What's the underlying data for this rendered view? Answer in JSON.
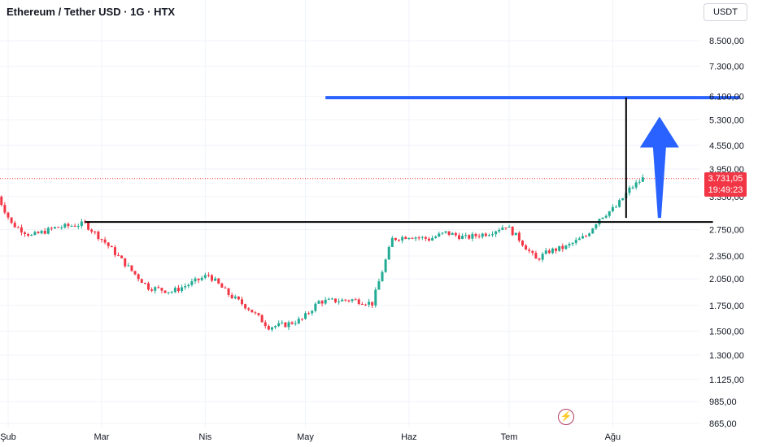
{
  "header": {
    "title": "Ethereum / Tether USD · 1G · HTX",
    "currency_button": "USDT"
  },
  "last_price": {
    "price": "3.731,05",
    "countdown": "19:49:23"
  },
  "colors": {
    "up": "#22ab94",
    "down": "#f23645",
    "target_line": "#2962ff",
    "trend_line": "#000000",
    "price_line": "#f23645",
    "grid": "#f0f3fa"
  },
  "icons": [
    "lightning-logo-icon",
    "up-arrow-icon"
  ],
  "chart_data": {
    "type": "candlestick",
    "title": "Ethereum / Tether USD · 1G · HTX",
    "y_scale": "log",
    "ylim": [
      850,
      10000
    ],
    "y_ticks": [
      {
        "value": 8500,
        "label": "8.500,00"
      },
      {
        "value": 7300,
        "label": "7.300,00"
      },
      {
        "value": 6100,
        "label": "6.100,00"
      },
      {
        "value": 5300,
        "label": "5.300,00"
      },
      {
        "value": 4550,
        "label": "4.550,00"
      },
      {
        "value": 3950,
        "label": "3.950,00"
      },
      {
        "value": 3350,
        "label": "3.350,00"
      },
      {
        "value": 2750,
        "label": "2.750,00"
      },
      {
        "value": 2350,
        "label": "2.350,00"
      },
      {
        "value": 2050,
        "label": "2.050,00"
      },
      {
        "value": 1750,
        "label": "1.750,00"
      },
      {
        "value": 1500,
        "label": "1.500,00"
      },
      {
        "value": 1300,
        "label": "1.300,00"
      },
      {
        "value": 1125,
        "label": "1.125,00"
      },
      {
        "value": 985,
        "label": "985,00"
      },
      {
        "value": 865,
        "label": "865,00"
      }
    ],
    "x_ticks": [
      {
        "date": "2023-02-01",
        "label": "Şub"
      },
      {
        "date": "2023-03-01",
        "label": "Mar"
      },
      {
        "date": "2023-04-01",
        "label": "Nis"
      },
      {
        "date": "2023-05-01",
        "label": "May"
      },
      {
        "date": "2023-06-01",
        "label": "Haz"
      },
      {
        "date": "2023-07-01",
        "label": "Tem"
      },
      {
        "date": "2023-08-01",
        "label": "Ağu"
      }
    ],
    "xlim": [
      "2023-02-01",
      "2023-08-31"
    ],
    "series_path": [
      [
        "2023-01-29",
        3350
      ],
      [
        "2023-02-02",
        2850
      ],
      [
        "2023-02-08",
        2650
      ],
      [
        "2023-02-15",
        2780
      ],
      [
        "2023-02-24",
        2850
      ],
      [
        "2023-03-02",
        2550
      ],
      [
        "2023-03-10",
        2150
      ],
      [
        "2023-03-15",
        1950
      ],
      [
        "2023-03-22",
        1900
      ],
      [
        "2023-03-28",
        2000
      ],
      [
        "2023-04-02",
        2100
      ],
      [
        "2023-04-08",
        1870
      ],
      [
        "2023-04-14",
        1720
      ],
      [
        "2023-04-20",
        1540
      ],
      [
        "2023-04-25",
        1560
      ],
      [
        "2023-04-30",
        1610
      ],
      [
        "2023-05-05",
        1790
      ],
      [
        "2023-05-15",
        1810
      ],
      [
        "2023-05-21",
        1770
      ],
      [
        "2023-05-24",
        2150
      ],
      [
        "2023-05-27",
        2600
      ],
      [
        "2023-06-01",
        2650
      ],
      [
        "2023-06-07",
        2600
      ],
      [
        "2023-06-12",
        2700
      ],
      [
        "2023-06-18",
        2620
      ],
      [
        "2023-06-25",
        2700
      ],
      [
        "2023-06-30",
        2820
      ],
      [
        "2023-07-04",
        2600
      ],
      [
        "2023-07-09",
        2300
      ],
      [
        "2023-07-13",
        2420
      ],
      [
        "2023-07-18",
        2480
      ],
      [
        "2023-07-24",
        2650
      ],
      [
        "2023-07-28",
        2950
      ],
      [
        "2023-08-02",
        3150
      ],
      [
        "2023-08-06",
        3500
      ],
      [
        "2023-08-10",
        3731
      ]
    ],
    "last_price": 3731.05,
    "annotations": [
      {
        "type": "horizontal_segment",
        "label": "resistance",
        "y": 2880,
        "from": "2023-02-24",
        "to": "2023-08-31",
        "color": "#000000"
      },
      {
        "type": "horizontal_segment",
        "label": "target",
        "y": 6050,
        "from": "2023-05-07",
        "to": "2023-09-08",
        "color": "#2962ff"
      },
      {
        "type": "vertical_segment",
        "label": "measured-move",
        "x": "2023-08-05",
        "from": 2950,
        "to": 6050,
        "color": "#000000"
      },
      {
        "type": "arrow_up",
        "x": "2023-08-15",
        "from": 2950,
        "to": 5400,
        "color": "#2962ff"
      }
    ]
  }
}
